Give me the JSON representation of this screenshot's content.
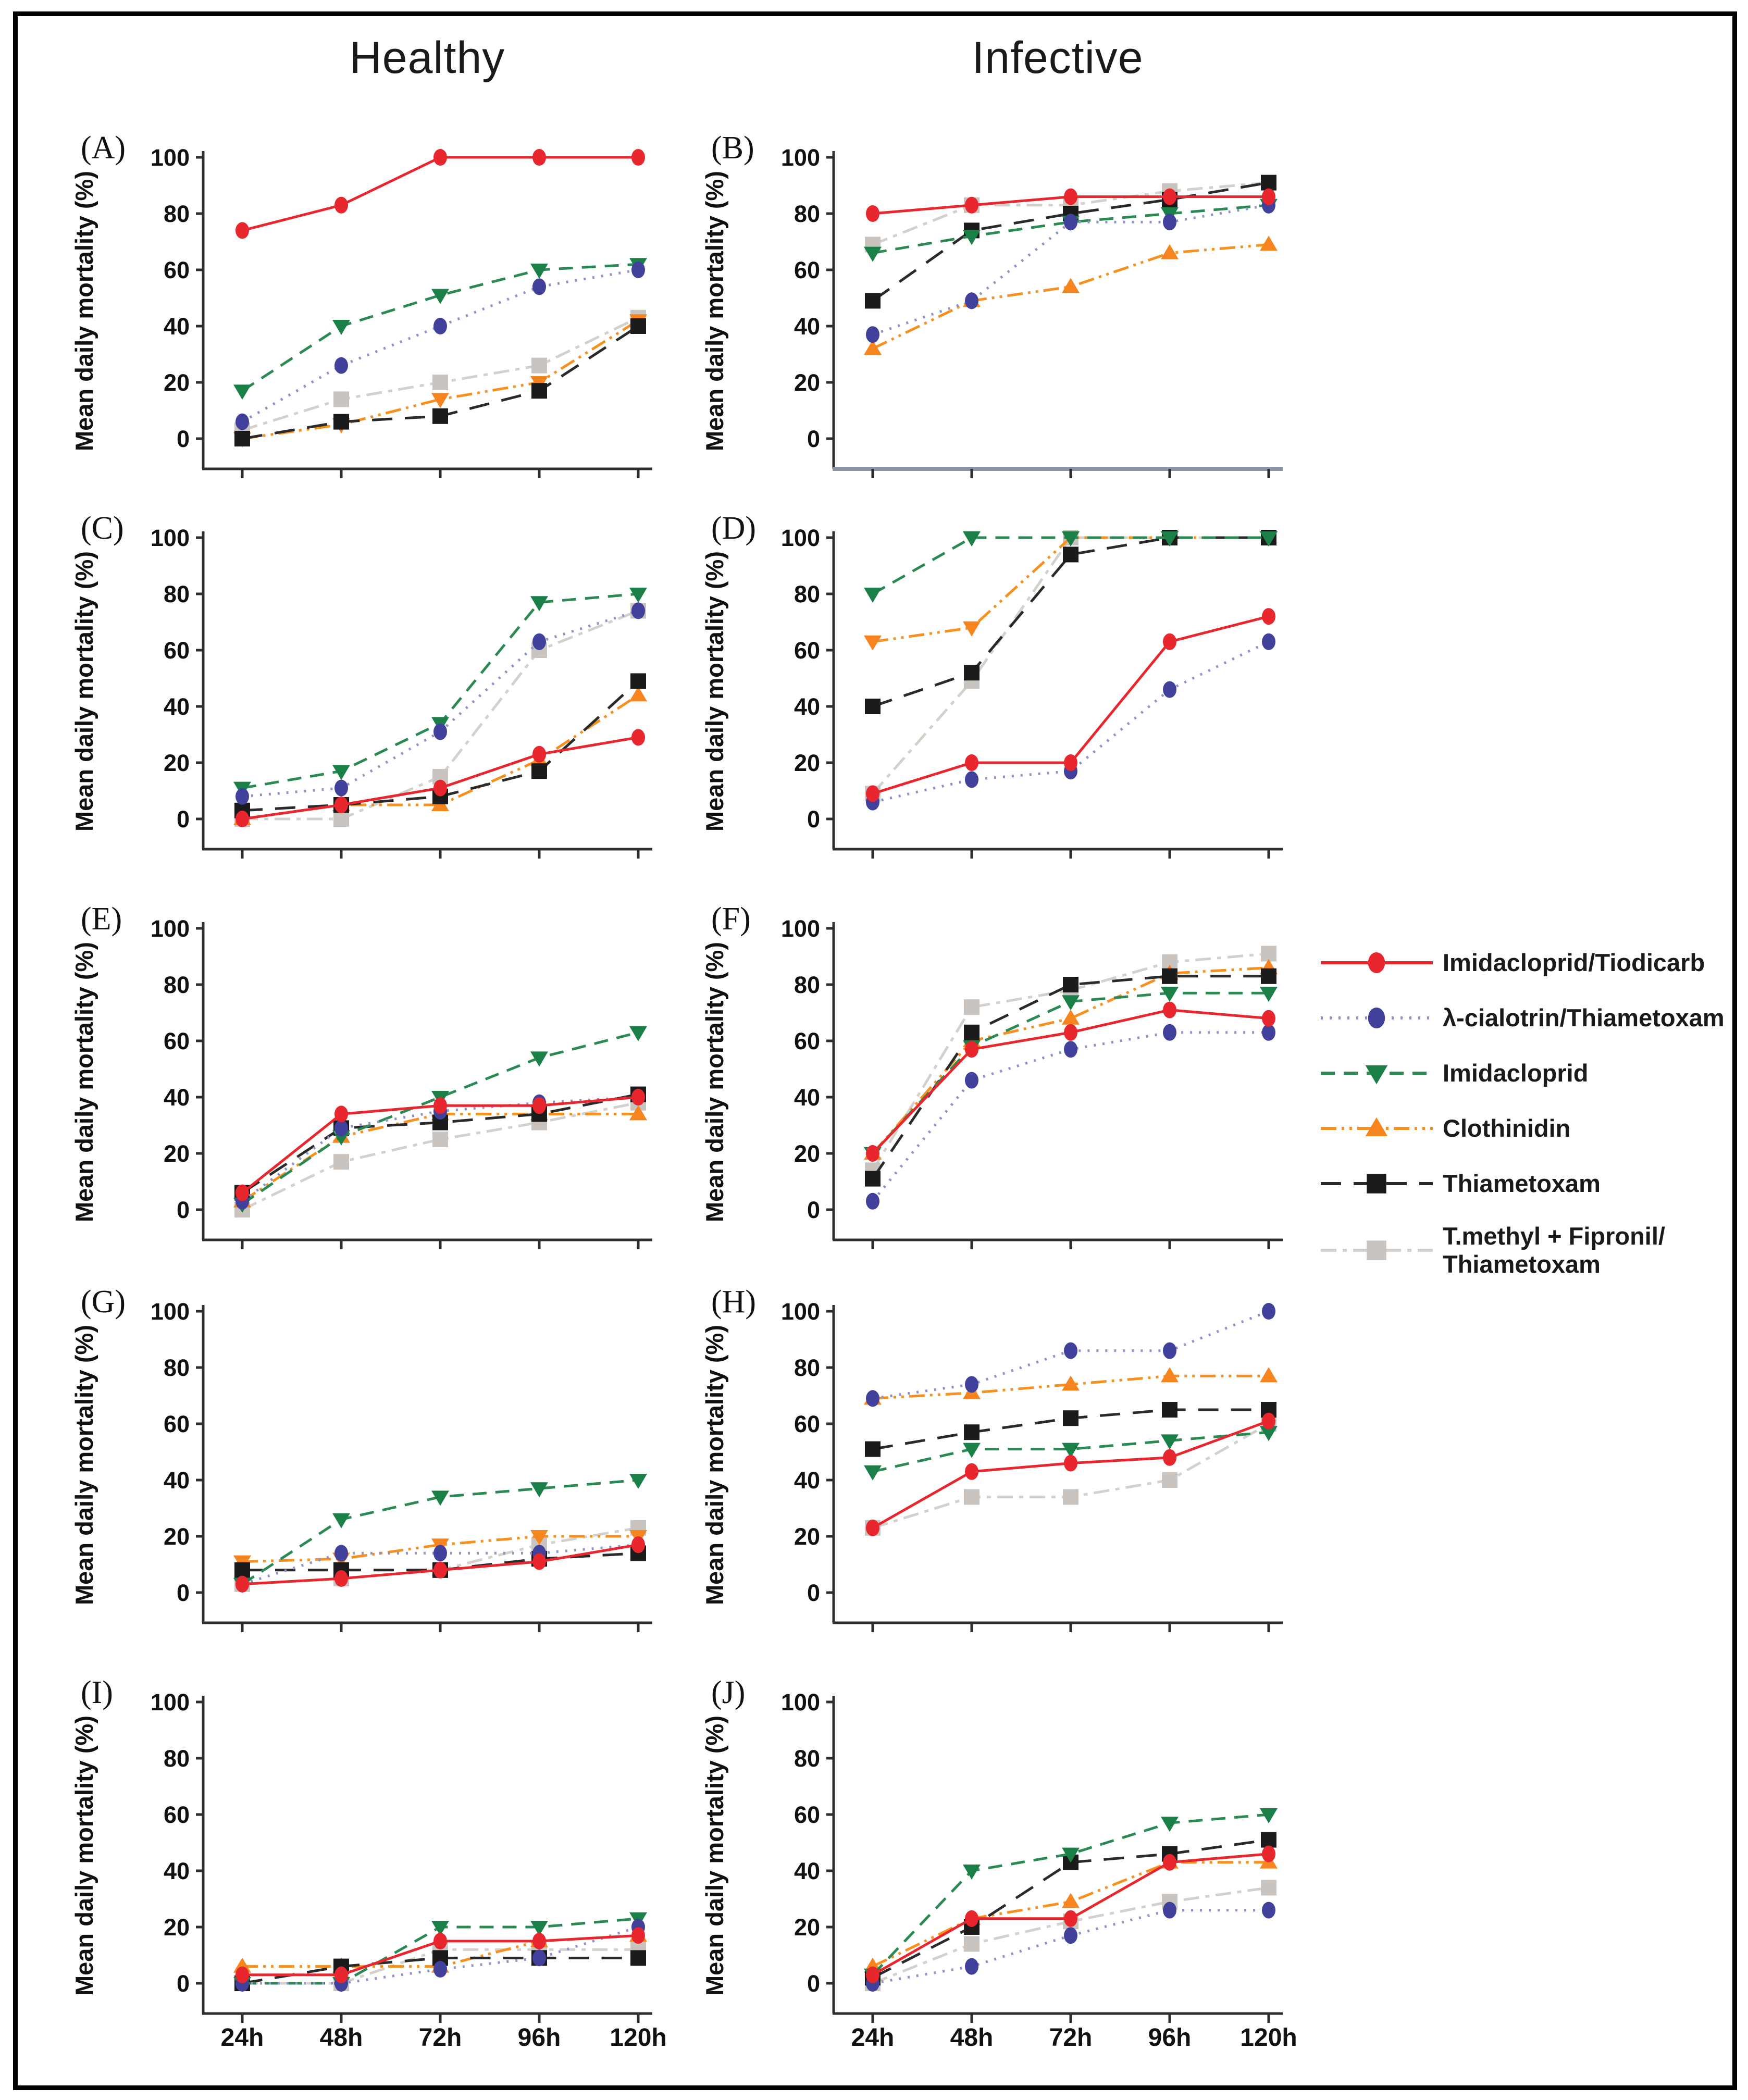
{
  "figure": {
    "column_titles": {
      "left": "Healthy",
      "right": "Infective"
    },
    "ylabel": "Mean daily mortality (%)",
    "x_labels": [
      "24h",
      "48h",
      "72h",
      "96h",
      "120h"
    ],
    "yticks": [
      0,
      20,
      40,
      60,
      80,
      100
    ],
    "frame_color": "#000000",
    "background": "#ffffff"
  },
  "legend": {
    "position": "right of panel F",
    "items": [
      {
        "label": "Imidacloprid/Tiodicarb",
        "marker": "circle",
        "marker_color": "#e8262d",
        "line_color": "#e8262d",
        "dash": "solid"
      },
      {
        "label": "λ-cialotrin/Thiametoxam",
        "marker": "circle",
        "marker_color": "#41419b",
        "line_color": "#9093c8",
        "dash": "dotted"
      },
      {
        "label": "Imidacloprid",
        "marker": "triangle-down",
        "marker_color": "#1a8048",
        "line_color": "#2b8a54",
        "dash": "dashed"
      },
      {
        "label": "Clothinidin",
        "marker": "triangle-up",
        "marker_color": "#f6851f",
        "line_color": "#f6901f",
        "dash": "dashdotdot"
      },
      {
        "label": "Thiametoxam",
        "marker": "square",
        "marker_color": "#1b1b1b",
        "line_color": "#2a2a2a",
        "dash": "longdash"
      },
      {
        "label": "T.methyl + Fipronil/\nThiametoxam",
        "marker": "square",
        "marker_color": "#c9c4c0",
        "line_color": "#d4d0cb",
        "dash": "dashdot"
      }
    ]
  },
  "chart_data": [
    {
      "id": "A",
      "label": "(A)",
      "type": "line",
      "column": "Healthy",
      "ylim": [
        0,
        100
      ],
      "grid": false,
      "x": [
        "24h",
        "48h",
        "72h",
        "96h",
        "120h"
      ],
      "show_x_labels": false,
      "orange_marker": "down",
      "series": [
        {
          "name": "Imidacloprid/Tiodicarb",
          "values": [
            74,
            83,
            100,
            100,
            100
          ]
        },
        {
          "name": "λ-cialotrin/Thiametoxam",
          "values": [
            6,
            26,
            40,
            54,
            60
          ]
        },
        {
          "name": "Imidacloprid",
          "values": [
            17,
            40,
            51,
            60,
            62
          ]
        },
        {
          "name": "Clothinidin",
          "values": [
            0,
            5,
            14,
            20,
            42
          ]
        },
        {
          "name": "Thiametoxam",
          "values": [
            0,
            6,
            8,
            17,
            40
          ]
        },
        {
          "name": "T.methyl + Fipronil/Thiametoxam",
          "values": [
            3,
            14,
            20,
            26,
            43
          ]
        }
      ]
    },
    {
      "id": "B",
      "label": "(B)",
      "type": "line",
      "column": "Infective",
      "ylim": [
        0,
        100
      ],
      "grid": false,
      "x": [
        "24h",
        "48h",
        "72h",
        "96h",
        "120h"
      ],
      "show_x_labels": false,
      "baseline_color": "#8e93a4",
      "series": [
        {
          "name": "Imidacloprid/Tiodicarb",
          "values": [
            80,
            83,
            86,
            86,
            86
          ]
        },
        {
          "name": "λ-cialotrin/Thiametoxam",
          "values": [
            37,
            49,
            77,
            77,
            83
          ]
        },
        {
          "name": "Imidacloprid",
          "values": [
            66,
            72,
            77,
            80,
            83
          ]
        },
        {
          "name": "Clothinidin",
          "values": [
            32,
            49,
            54,
            66,
            69
          ]
        },
        {
          "name": "Thiametoxam",
          "values": [
            49,
            74,
            80,
            85,
            91
          ]
        },
        {
          "name": "T.methyl + Fipronil/Thiametoxam",
          "values": [
            69,
            83,
            83,
            88,
            91
          ]
        }
      ]
    },
    {
      "id": "C",
      "label": "(C)",
      "type": "line",
      "column": "Healthy",
      "ylim": [
        0,
        100
      ],
      "grid": false,
      "x": [
        "24h",
        "48h",
        "72h",
        "96h",
        "120h"
      ],
      "show_x_labels": false,
      "series": [
        {
          "name": "Imidacloprid/Tiodicarb",
          "values": [
            0,
            5,
            11,
            23,
            29
          ]
        },
        {
          "name": "λ-cialotrin/Thiametoxam",
          "values": [
            8,
            11,
            31,
            63,
            74
          ]
        },
        {
          "name": "Imidacloprid",
          "values": [
            11,
            17,
            34,
            77,
            80
          ]
        },
        {
          "name": "Clothinidin",
          "values": [
            0,
            5,
            5,
            21,
            44
          ]
        },
        {
          "name": "Thiametoxam",
          "values": [
            3,
            5,
            8,
            17,
            49
          ]
        },
        {
          "name": "T.methyl + Fipronil/Thiametoxam",
          "values": [
            0,
            0,
            15,
            60,
            74
          ]
        }
      ]
    },
    {
      "id": "D",
      "label": "(D)",
      "type": "line",
      "column": "Infective",
      "ylim": [
        0,
        100
      ],
      "grid": false,
      "x": [
        "24h",
        "48h",
        "72h",
        "96h",
        "120h"
      ],
      "show_x_labels": false,
      "orange_marker": "down",
      "series": [
        {
          "name": "Imidacloprid/Tiodicarb",
          "values": [
            9,
            20,
            20,
            63,
            72
          ]
        },
        {
          "name": "λ-cialotrin/Thiametoxam",
          "values": [
            6,
            14,
            17,
            46,
            63
          ]
        },
        {
          "name": "Imidacloprid",
          "values": [
            80,
            100,
            100,
            100,
            100
          ]
        },
        {
          "name": "Clothinidin",
          "values": [
            63,
            68,
            100,
            100,
            100
          ]
        },
        {
          "name": "Thiametoxam",
          "values": [
            40,
            52,
            94,
            100,
            100
          ]
        },
        {
          "name": "T.methyl + Fipronil/Thiametoxam",
          "values": [
            9,
            49,
            100,
            100,
            100
          ]
        }
      ]
    },
    {
      "id": "E",
      "label": "(E)",
      "type": "line",
      "column": "Healthy",
      "ylim": [
        0,
        100
      ],
      "grid": false,
      "x": [
        "24h",
        "48h",
        "72h",
        "96h",
        "120h"
      ],
      "show_x_labels": false,
      "series": [
        {
          "name": "Imidacloprid/Tiodicarb",
          "values": [
            6,
            34,
            37,
            37,
            40
          ]
        },
        {
          "name": "λ-cialotrin/Thiametoxam",
          "values": [
            3,
            29,
            35,
            38,
            40
          ]
        },
        {
          "name": "Imidacloprid",
          "values": [
            2,
            26,
            40,
            54,
            63
          ]
        },
        {
          "name": "Clothinidin",
          "values": [
            3,
            26,
            34,
            34,
            34
          ]
        },
        {
          "name": "Thiametoxam",
          "values": [
            6,
            29,
            31,
            34,
            41
          ]
        },
        {
          "name": "T.methyl + Fipronil/Thiametoxam",
          "values": [
            0,
            17,
            25,
            31,
            38
          ]
        }
      ]
    },
    {
      "id": "F",
      "label": "(F)",
      "type": "line",
      "column": "Infective",
      "ylim": [
        0,
        100
      ],
      "grid": false,
      "x": [
        "24h",
        "48h",
        "72h",
        "96h",
        "120h"
      ],
      "show_x_labels": false,
      "series": [
        {
          "name": "Imidacloprid/Tiodicarb",
          "values": [
            20,
            57,
            63,
            71,
            68
          ]
        },
        {
          "name": "λ-cialotrin/Thiametoxam",
          "values": [
            3,
            46,
            57,
            63,
            63
          ]
        },
        {
          "name": "Imidacloprid",
          "values": [
            20,
            58,
            74,
            77,
            77
          ]
        },
        {
          "name": "Clothinidin",
          "values": [
            20,
            60,
            68,
            84,
            86
          ]
        },
        {
          "name": "Thiametoxam",
          "values": [
            11,
            63,
            80,
            83,
            83
          ]
        },
        {
          "name": "T.methyl + Fipronil/Thiametoxam",
          "values": [
            14,
            72,
            78,
            88,
            91
          ]
        }
      ]
    },
    {
      "id": "G",
      "label": "(G)",
      "type": "line",
      "column": "Healthy",
      "ylim": [
        0,
        100
      ],
      "grid": false,
      "x": [
        "24h",
        "48h",
        "72h",
        "96h",
        "120h"
      ],
      "show_x_labels": false,
      "orange_marker": "down",
      "series": [
        {
          "name": "Imidacloprid/Tiodicarb",
          "values": [
            3,
            5,
            8,
            11,
            17
          ]
        },
        {
          "name": "λ-cialotrin/Thiametoxam",
          "values": [
            3,
            14,
            14,
            14,
            17
          ]
        },
        {
          "name": "Imidacloprid",
          "values": [
            3,
            26,
            34,
            37,
            40
          ]
        },
        {
          "name": "Clothinidin",
          "values": [
            11,
            12,
            17,
            20,
            20
          ]
        },
        {
          "name": "Thiametoxam",
          "values": [
            8,
            8,
            8,
            12,
            14
          ]
        },
        {
          "name": "T.methyl + Fipronil/Thiametoxam",
          "values": [
            3,
            5,
            8,
            17,
            23
          ]
        }
      ]
    },
    {
      "id": "H",
      "label": "(H)",
      "type": "line",
      "column": "Infective",
      "ylim": [
        0,
        100
      ],
      "grid": false,
      "x": [
        "24h",
        "48h",
        "72h",
        "96h",
        "120h"
      ],
      "show_x_labels": false,
      "series": [
        {
          "name": "Imidacloprid/Tiodicarb",
          "values": [
            23,
            43,
            46,
            48,
            61
          ]
        },
        {
          "name": "λ-cialotrin/Thiametoxam",
          "values": [
            69,
            74,
            86,
            86,
            100
          ]
        },
        {
          "name": "Imidacloprid",
          "values": [
            43,
            51,
            51,
            54,
            57
          ]
        },
        {
          "name": "Clothinidin",
          "values": [
            69,
            71,
            74,
            77,
            77
          ]
        },
        {
          "name": "Thiametoxam",
          "values": [
            51,
            57,
            62,
            65,
            65
          ]
        },
        {
          "name": "T.methyl + Fipronil/Thiametoxam",
          "values": [
            23,
            34,
            34,
            40,
            60
          ]
        }
      ]
    },
    {
      "id": "I",
      "label": "(I)",
      "type": "line",
      "column": "Healthy",
      "ylim": [
        0,
        100
      ],
      "grid": false,
      "x": [
        "24h",
        "48h",
        "72h",
        "96h",
        "120h"
      ],
      "show_x_labels": true,
      "series": [
        {
          "name": "Imidacloprid/Tiodicarb",
          "values": [
            3,
            3,
            15,
            15,
            17
          ]
        },
        {
          "name": "λ-cialotrin/Thiametoxam",
          "values": [
            0,
            0,
            5,
            9,
            20
          ]
        },
        {
          "name": "Imidacloprid",
          "values": [
            0,
            0,
            20,
            20,
            23
          ]
        },
        {
          "name": "Clothinidin",
          "values": [
            6,
            6,
            6,
            15,
            17
          ]
        },
        {
          "name": "Thiametoxam",
          "values": [
            0,
            6,
            9,
            9,
            9
          ]
        },
        {
          "name": "T.methyl + Fipronil/Thiametoxam",
          "values": [
            0,
            0,
            12,
            12,
            12
          ]
        }
      ]
    },
    {
      "id": "J",
      "label": "(J)",
      "type": "line",
      "column": "Infective",
      "ylim": [
        0,
        100
      ],
      "grid": false,
      "x": [
        "24h",
        "48h",
        "72h",
        "96h",
        "120h"
      ],
      "show_x_labels": true,
      "series": [
        {
          "name": "Imidacloprid/Tiodicarb",
          "values": [
            3,
            23,
            23,
            43,
            46
          ]
        },
        {
          "name": "λ-cialotrin/Thiametoxam",
          "values": [
            0,
            6,
            17,
            26,
            26
          ]
        },
        {
          "name": "Imidacloprid",
          "values": [
            3,
            40,
            46,
            57,
            60
          ]
        },
        {
          "name": "Clothinidin",
          "values": [
            6,
            23,
            29,
            43,
            43
          ]
        },
        {
          "name": "Thiametoxam",
          "values": [
            2,
            20,
            43,
            46,
            51
          ]
        },
        {
          "name": "T.methyl + Fipronil/Thiametoxam",
          "values": [
            0,
            14,
            22,
            29,
            34
          ]
        }
      ]
    }
  ]
}
